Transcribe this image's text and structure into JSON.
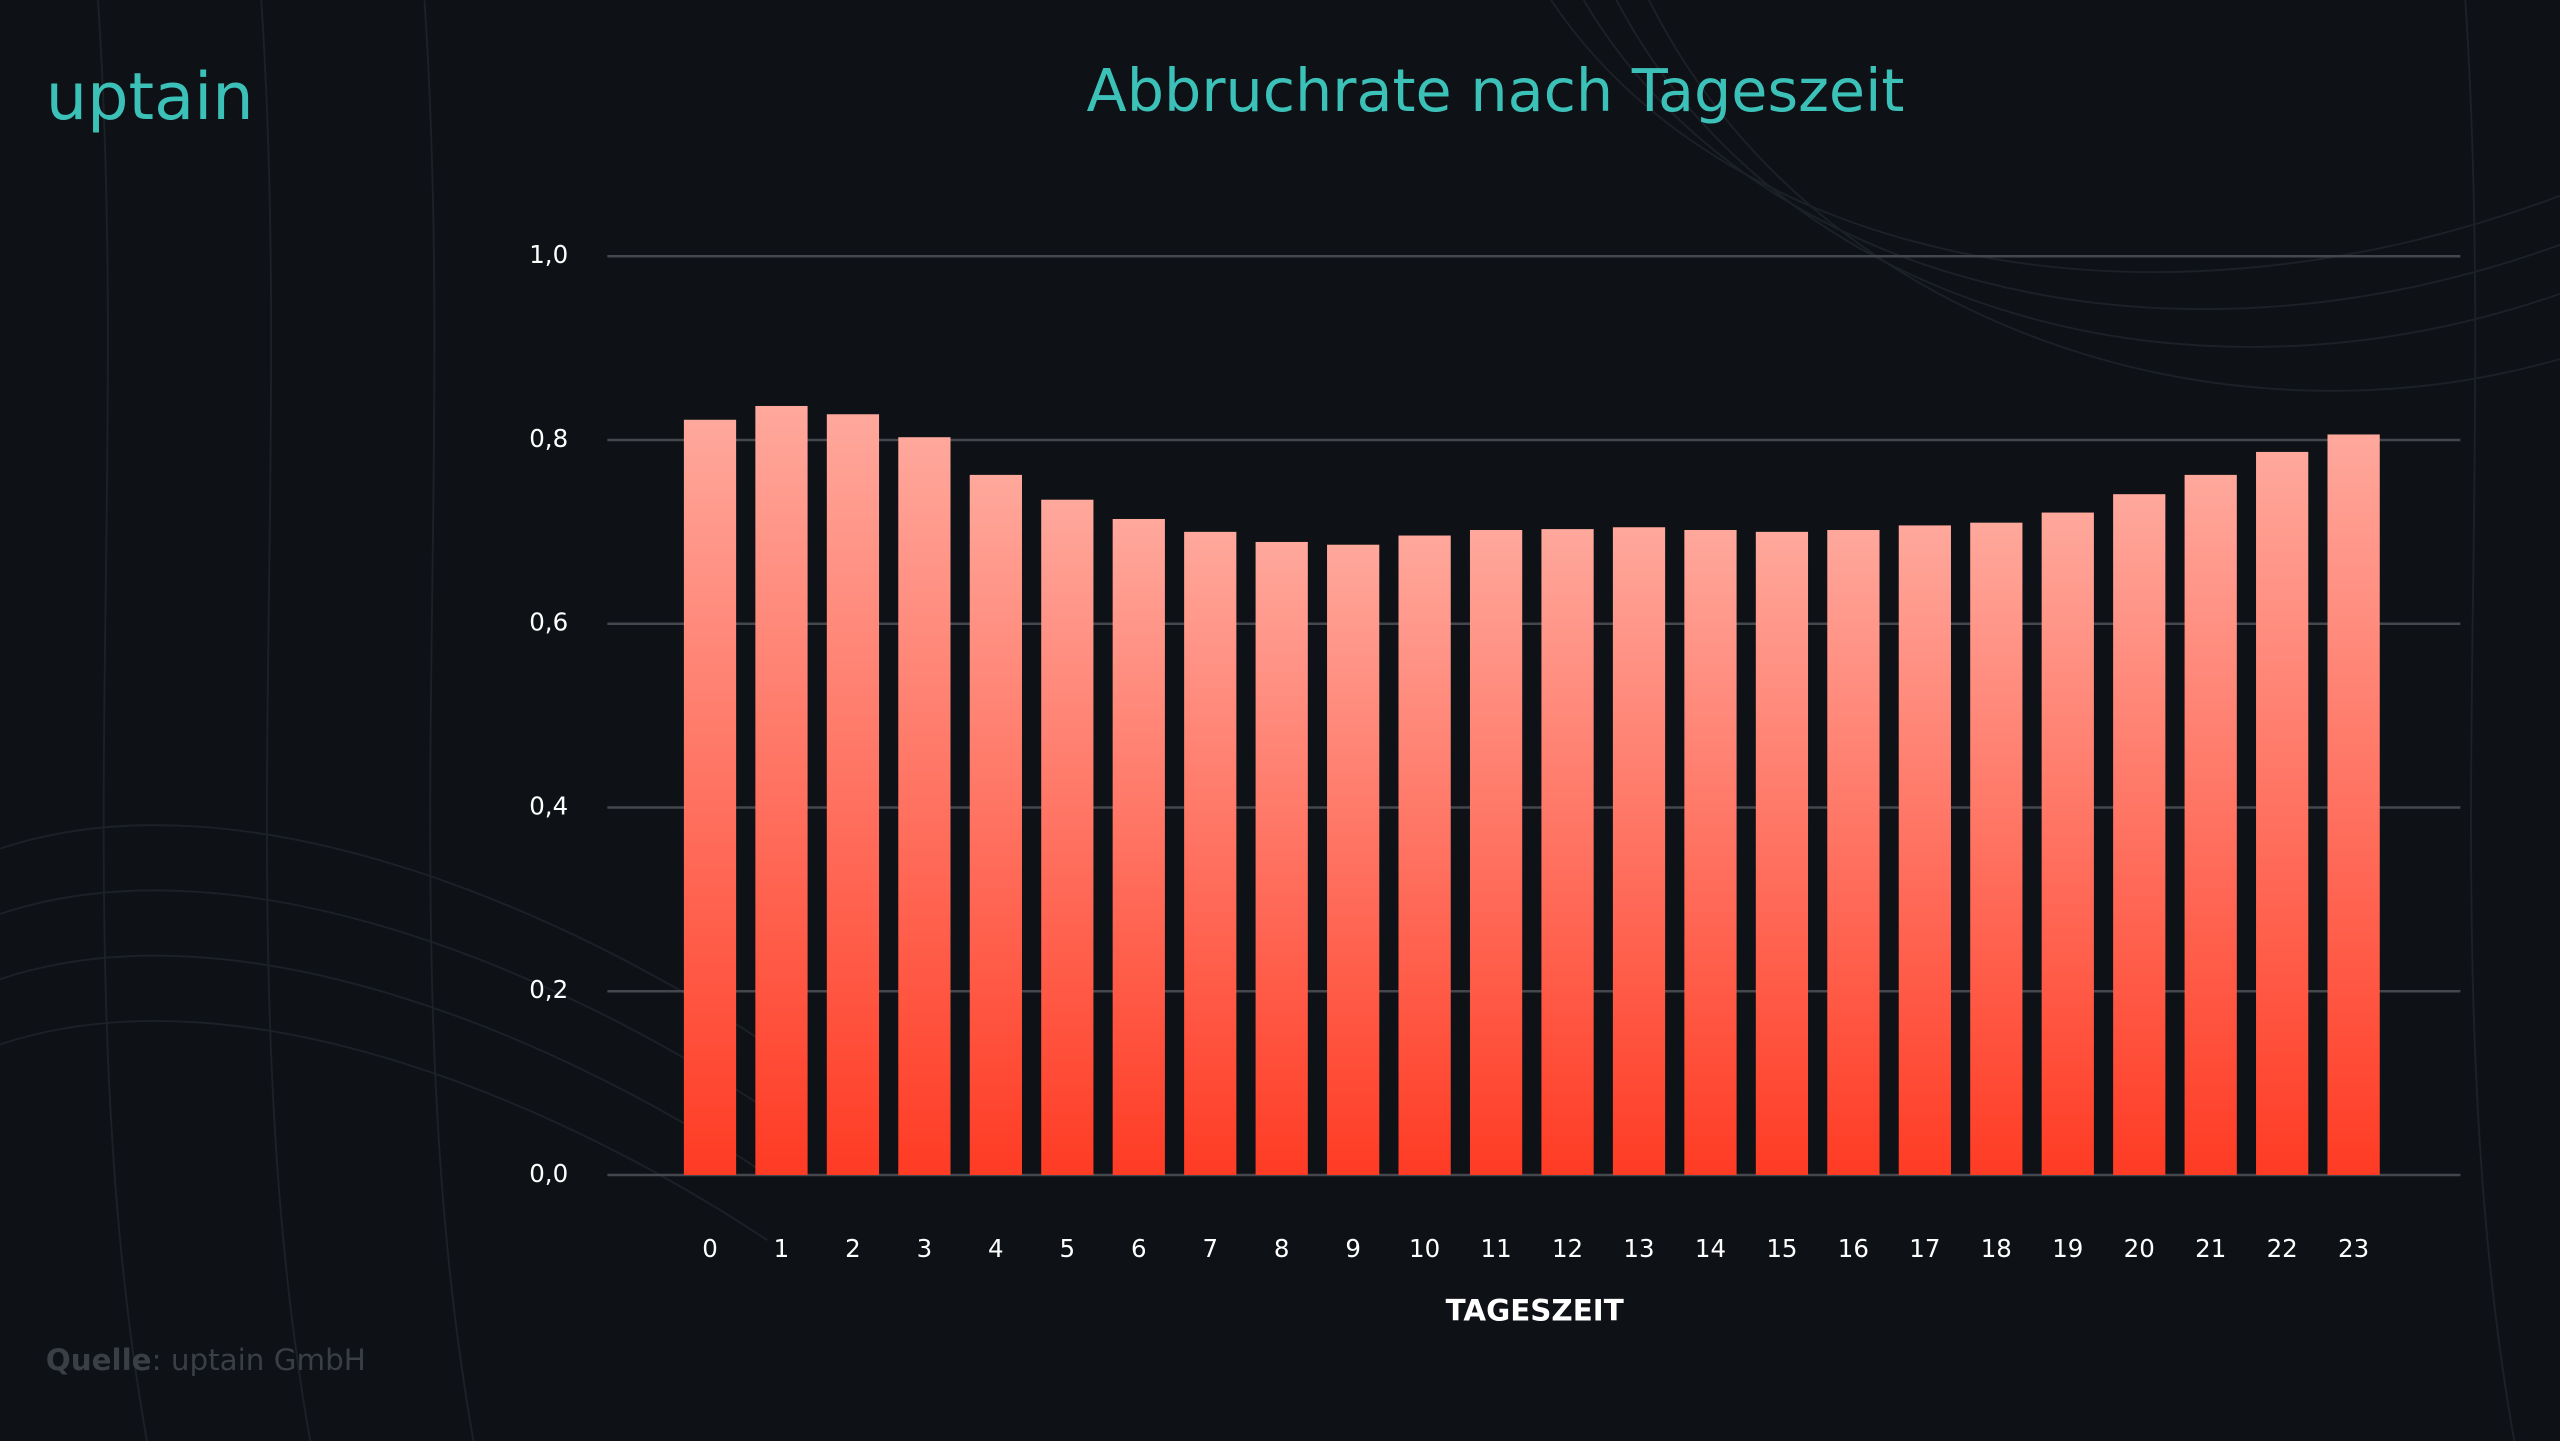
{
  "logo": "uptain",
  "source": {
    "label": "Quelle",
    "text": ": uptain GmbH"
  },
  "chart_data": {
    "type": "bar",
    "title": "Abbruchrate nach Tageszeit",
    "x_label": "TAGESZEIT",
    "categories": [
      "0",
      "1",
      "2",
      "3",
      "4",
      "5",
      "6",
      "7",
      "8",
      "9",
      "10",
      "11",
      "12",
      "13",
      "14",
      "15",
      "16",
      "17",
      "18",
      "19",
      "20",
      "21",
      "22",
      "23"
    ],
    "values": [
      0.822,
      0.837,
      0.828,
      0.803,
      0.762,
      0.735,
      0.714,
      0.7,
      0.689,
      0.686,
      0.696,
      0.702,
      0.703,
      0.705,
      0.702,
      0.7,
      0.702,
      0.707,
      0.71,
      0.721,
      0.741,
      0.762,
      0.787,
      0.806
    ],
    "gradient": [
      "#ffa89c",
      "#ff3b24"
    ],
    "ylim": [
      0,
      1
    ],
    "yticks": [
      {
        "value": 0,
        "label": "0,0"
      },
      {
        "value": 0.2,
        "label": "0,2"
      },
      {
        "value": 0.4,
        "label": "0,4"
      },
      {
        "value": 0.6,
        "label": "0,6"
      },
      {
        "value": 0.8,
        "label": "0,8"
      },
      {
        "value": 1,
        "label": "1,0"
      }
    ],
    "grid": true
  }
}
